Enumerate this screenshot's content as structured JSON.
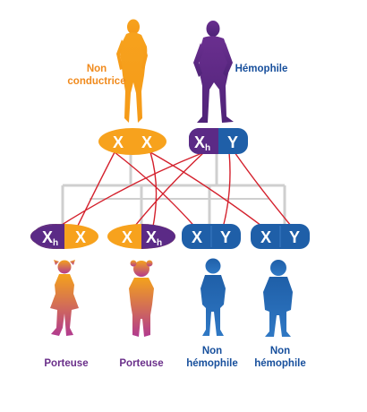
{
  "colors": {
    "mother": "#f7a21d",
    "father": "#5b2a86",
    "son": "#1f5fa8",
    "daughter_top": "#f4a21c",
    "daughter_bottom": "#b23a8f",
    "lines_red": "#d4202c",
    "lines_grey": "#cfcfcf",
    "label_orange": "#f08a1c",
    "label_purple": "#6a2f8a",
    "label_navy": "#174f9c"
  },
  "parents": {
    "mother": {
      "label_line1": "Non",
      "label_line2": "conductrice",
      "icon": "woman-silhouette-icon",
      "chromosomes": {
        "first": "X",
        "second": "X"
      }
    },
    "father": {
      "label": "Hémophile",
      "icon": "man-silhouette-icon",
      "chromosomes": {
        "first_letter": "X",
        "first_subscript": "h",
        "second": "Y"
      }
    }
  },
  "children": [
    {
      "chrom_a": "X",
      "chrom_a_sub": "h",
      "chrom_b": "X",
      "chrom_b_sub": "",
      "label_line1": "Porteuse",
      "label_line2": "",
      "icon": "girl-silhouette-icon"
    },
    {
      "chrom_a": "X",
      "chrom_a_sub": "",
      "chrom_b": "X",
      "chrom_b_sub": "h",
      "label_line1": "Porteuse",
      "label_line2": "",
      "icon": "girl-silhouette-icon"
    },
    {
      "chrom_a": "X",
      "chrom_a_sub": "",
      "chrom_b": "Y",
      "chrom_b_sub": "",
      "label_line1": "Non",
      "label_line2": "hémophile",
      "icon": "boy-silhouette-icon"
    },
    {
      "chrom_a": "X",
      "chrom_a_sub": "",
      "chrom_b": "Y",
      "chrom_b_sub": "",
      "label_line1": "Non",
      "label_line2": "hémophile",
      "icon": "boy-silhouette-icon"
    }
  ]
}
